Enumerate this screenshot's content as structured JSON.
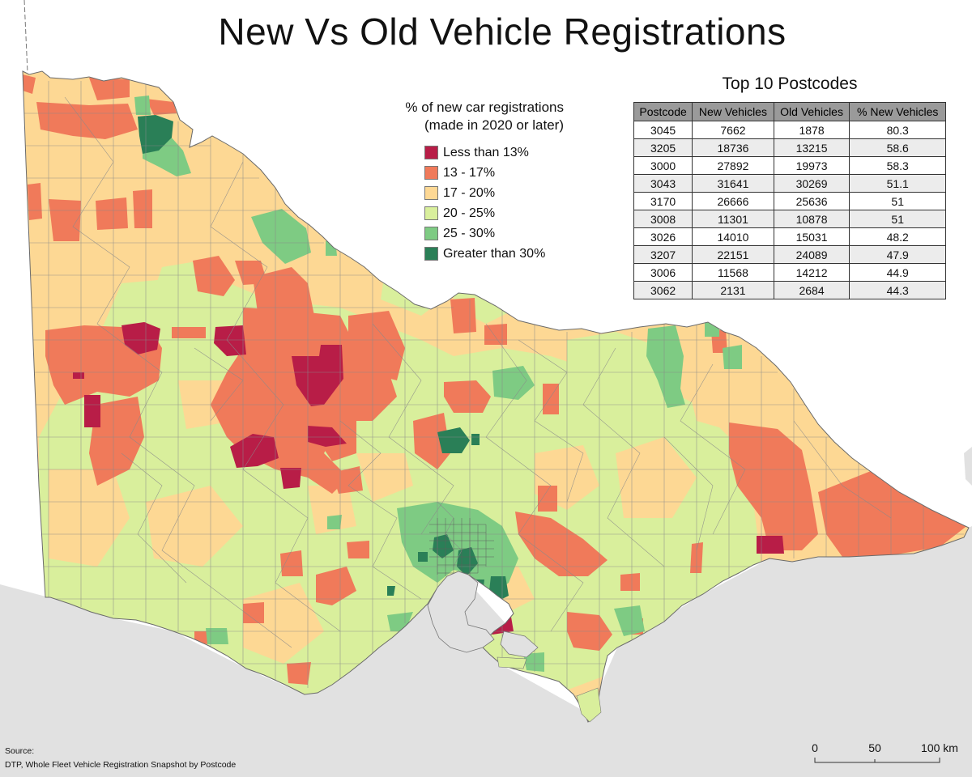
{
  "title": "New Vs Old Vehicle Registrations",
  "legend": {
    "title_line1": "% of new car registrations",
    "title_line2": "(made in 2020 or later)",
    "items": [
      {
        "label": "Less than 13%",
        "color": "#b81d47"
      },
      {
        "label": "13 - 17%",
        "color": "#f07a5a"
      },
      {
        "label": "17 - 20%",
        "color": "#fdd894"
      },
      {
        "label": "20 - 25%",
        "color": "#d9ef9c"
      },
      {
        "label": "25 - 30%",
        "color": "#7ecb83"
      },
      {
        "label": "Greater than 30%",
        "color": "#2a7f57"
      }
    ]
  },
  "top10": {
    "title": "Top 10 Postcodes",
    "headers": [
      "Postcode",
      "New Vehicles",
      "Old Vehicles",
      "% New Vehicles"
    ],
    "rows": [
      [
        "3045",
        "7662",
        "1878",
        "80.3"
      ],
      [
        "3205",
        "18736",
        "13215",
        "58.6"
      ],
      [
        "3000",
        "27892",
        "19973",
        "58.3"
      ],
      [
        "3043",
        "31641",
        "30269",
        "51.1"
      ],
      [
        "3170",
        "26666",
        "25636",
        "51"
      ],
      [
        "3008",
        "11301",
        "10878",
        "51"
      ],
      [
        "3026",
        "14010",
        "15031",
        "48.2"
      ],
      [
        "3207",
        "22151",
        "24089",
        "47.9"
      ],
      [
        "3006",
        "11568",
        "14212",
        "44.9"
      ],
      [
        "3062",
        "2131",
        "2684",
        "44.3"
      ]
    ]
  },
  "source": {
    "label": "Source:",
    "text": "DTP, Whole Fleet Vehicle Registration Snapshot by Postcode"
  },
  "scale_bar": {
    "labels": [
      "0",
      "50",
      "100 km"
    ]
  },
  "colors": {
    "sea": "#e1e1e1",
    "land_base": "#fdd894",
    "boundary": "#8a8a8a"
  }
}
